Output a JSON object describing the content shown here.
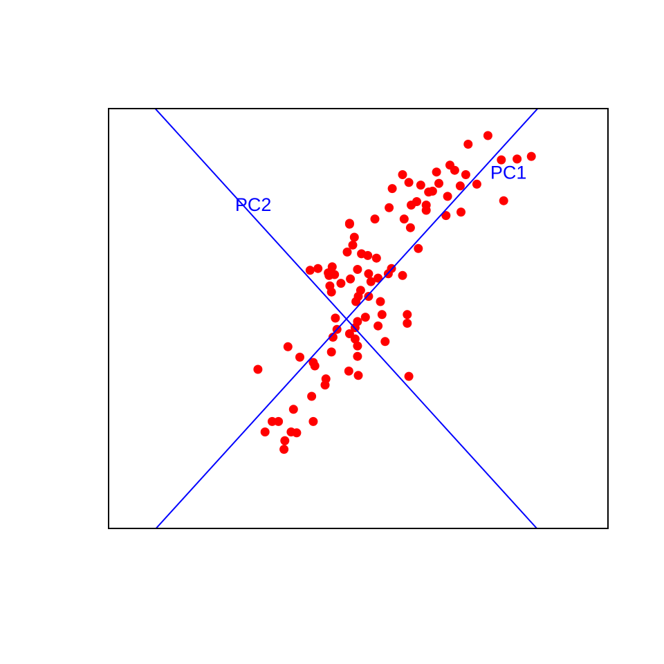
{
  "chart_data": {
    "type": "scatter",
    "title": "",
    "xlabel": "",
    "ylabel": "",
    "xlim": [
      -3.16,
      3.16
    ],
    "ylim": [
      -3.16,
      1.67
    ],
    "axes_visible": false,
    "box": true,
    "colors": {
      "points": "#ff0000",
      "lines": "#0000ff",
      "box": "#000000"
    },
    "points": [
      [
        1.64,
        1.36
      ],
      [
        1.81,
        1.08
      ],
      [
        2.01,
        1.09
      ],
      [
        2.19,
        1.12
      ],
      [
        1.84,
        0.61
      ],
      [
        1.5,
        0.8
      ],
      [
        1.39,
        1.26
      ],
      [
        1.16,
        1.02
      ],
      [
        1.36,
        0.91
      ],
      [
        1.29,
        0.78
      ],
      [
        1.22,
        0.96
      ],
      [
        1.02,
        0.81
      ],
      [
        0.99,
        0.94
      ],
      [
        0.79,
        0.79
      ],
      [
        0.94,
        0.72
      ],
      [
        0.74,
        0.6
      ],
      [
        0.86,
        0.56
      ],
      [
        0.89,
        0.71
      ],
      [
        1.13,
        0.66
      ],
      [
        0.67,
        0.56
      ],
      [
        0.56,
        0.91
      ],
      [
        0.43,
        0.75
      ],
      [
        0.64,
        0.82
      ],
      [
        0.86,
        0.5
      ],
      [
        1.3,
        0.48
      ],
      [
        1.11,
        0.44
      ],
      [
        0.39,
        0.53
      ],
      [
        0.21,
        0.4
      ],
      [
        0.58,
        0.4
      ],
      [
        0.66,
        0.3
      ],
      [
        0.76,
        0.06
      ],
      [
        -0.11,
        0.35
      ],
      [
        -0.11,
        0.34
      ],
      [
        -0.05,
        0.19
      ],
      [
        -0.14,
        0.02
      ],
      [
        -0.07,
        0.1
      ],
      [
        0.04,
        0.0
      ],
      [
        0.12,
        -0.02
      ],
      [
        0.23,
        -0.05
      ],
      [
        -0.01,
        -0.18
      ],
      [
        0.13,
        -0.23
      ],
      [
        0.38,
        -0.23
      ],
      [
        0.42,
        -0.17
      ],
      [
        0.56,
        -0.25
      ],
      [
        -0.61,
        -0.19
      ],
      [
        -0.51,
        -0.17
      ],
      [
        -0.38,
        -0.22
      ],
      [
        -0.33,
        -0.15
      ],
      [
        -0.37,
        -0.25
      ],
      [
        -0.3,
        -0.24
      ],
      [
        -0.36,
        -0.37
      ],
      [
        -0.1,
        -0.29
      ],
      [
        -0.22,
        -0.34
      ],
      [
        0.25,
        -0.28
      ],
      [
        0.16,
        -0.32
      ],
      [
        0.03,
        -0.42
      ],
      [
        0.0,
        -0.49
      ],
      [
        0.13,
        -0.49
      ],
      [
        0.28,
        -0.55
      ],
      [
        -0.34,
        -0.44
      ],
      [
        -0.03,
        -0.55
      ],
      [
        0.3,
        -0.7
      ],
      [
        0.62,
        -0.7
      ],
      [
        0.62,
        -0.8
      ],
      [
        -0.29,
        -0.74
      ],
      [
        0.09,
        -0.73
      ],
      [
        0.25,
        -0.83
      ],
      [
        -0.01,
        -0.78
      ],
      [
        -0.04,
        -0.85
      ],
      [
        -0.11,
        -0.92
      ],
      [
        -0.27,
        -0.87
      ],
      [
        -0.32,
        -0.96
      ],
      [
        -0.04,
        -0.98
      ],
      [
        -0.01,
        -1.06
      ],
      [
        0.34,
        -1.01
      ],
      [
        -0.01,
        -1.18
      ],
      [
        -0.34,
        -1.13
      ],
      [
        -0.89,
        -1.07
      ],
      [
        -0.74,
        -1.19
      ],
      [
        -0.57,
        -1.25
      ],
      [
        -0.55,
        -1.29
      ],
      [
        -0.12,
        -1.35
      ],
      [
        0.0,
        -1.4
      ],
      [
        -0.41,
        -1.44
      ],
      [
        -0.42,
        -1.51
      ],
      [
        -1.27,
        -1.33
      ],
      [
        0.64,
        -1.41
      ],
      [
        -0.59,
        -1.64
      ],
      [
        -0.82,
        -1.79
      ],
      [
        -0.57,
        -1.93
      ],
      [
        -1.09,
        -1.93
      ],
      [
        -1.01,
        -1.93
      ],
      [
        -1.18,
        -2.05
      ],
      [
        -0.85,
        -2.05
      ],
      [
        -0.78,
        -2.06
      ],
      [
        -0.93,
        -2.15
      ],
      [
        -0.94,
        -2.25
      ]
    ],
    "lines": [
      {
        "label": "PC1",
        "slope": 1.0,
        "intercept": -0.6
      },
      {
        "label": "PC2",
        "slope": -1.0,
        "intercept": -0.9
      }
    ],
    "annotations": [
      {
        "text": "PC1",
        "x": 1.9,
        "y": 0.92
      },
      {
        "text": "PC2",
        "x": -1.33,
        "y": 0.55
      }
    ]
  }
}
